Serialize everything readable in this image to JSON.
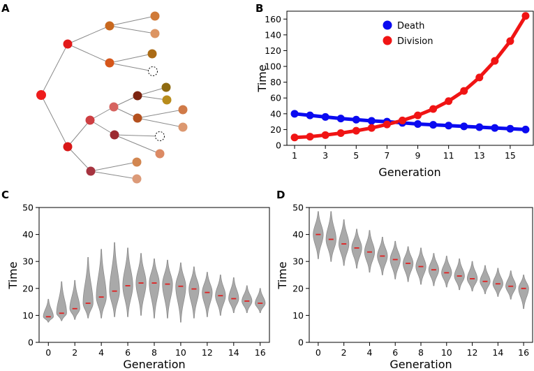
{
  "panels": {
    "a": "A",
    "b": "B",
    "c": "C",
    "d": "D"
  },
  "tree": {
    "nodes": [
      {
        "id": "root",
        "color": "#ee1c1c"
      },
      {
        "id": "u",
        "color": "#e21a1a"
      },
      {
        "id": "l",
        "color": "#d81818"
      },
      {
        "id": "uu",
        "color": "#c8681e"
      },
      {
        "id": "ul",
        "color": "#d6561a"
      },
      {
        "id": "uuu",
        "color": "#d07a38"
      },
      {
        "id": "uul",
        "color": "#dc9462"
      },
      {
        "id": "ulu",
        "color": "#ab6b15"
      },
      {
        "id": "ull",
        "dead": true
      },
      {
        "id": "lu",
        "color": "#ce3e42"
      },
      {
        "id": "ll",
        "color": "#a6333f"
      },
      {
        "id": "luu",
        "color": "#d66460"
      },
      {
        "id": "lul",
        "color": "#9c2a30"
      },
      {
        "id": "luuu",
        "color": "#7c2410"
      },
      {
        "id": "luul",
        "color": "#b4501e"
      },
      {
        "id": "luuuu",
        "color": "#8e6a10"
      },
      {
        "id": "luuul",
        "color": "#b88c1c"
      },
      {
        "id": "luulu",
        "color": "#d07a48"
      },
      {
        "id": "luull",
        "color": "#dc9870"
      },
      {
        "id": "lulu",
        "dead": true
      },
      {
        "id": "lull",
        "color": "#dc8a64"
      },
      {
        "id": "llu",
        "color": "#d28650"
      },
      {
        "id": "lll",
        "color": "#dc9a78"
      }
    ],
    "edges": [
      [
        "root",
        "u"
      ],
      [
        "root",
        "l"
      ],
      [
        "u",
        "uu"
      ],
      [
        "u",
        "ul"
      ],
      [
        "uu",
        "uuu"
      ],
      [
        "uu",
        "uul"
      ],
      [
        "ul",
        "ulu"
      ],
      [
        "ul",
        "ull"
      ],
      [
        "l",
        "lu"
      ],
      [
        "l",
        "ll"
      ],
      [
        "lu",
        "luu"
      ],
      [
        "lu",
        "lul"
      ],
      [
        "luu",
        "luuu"
      ],
      [
        "luu",
        "luul"
      ],
      [
        "luuu",
        "luuuu"
      ],
      [
        "luuu",
        "luuul"
      ],
      [
        "luul",
        "luulu"
      ],
      [
        "luul",
        "luull"
      ],
      [
        "lul",
        "lulu"
      ],
      [
        "lul",
        "lull"
      ],
      [
        "ll",
        "llu"
      ],
      [
        "ll",
        "lll"
      ]
    ]
  },
  "chart_data": [
    {
      "type": "line",
      "panel": "B",
      "xlabel": "Generation",
      "ylabel": "Time",
      "xlim": [
        0.5,
        16.5
      ],
      "ylim": [
        0,
        170
      ],
      "xticks": [
        1,
        3,
        5,
        7,
        9,
        11,
        13,
        15
      ],
      "yticks": [
        0,
        20,
        40,
        60,
        80,
        100,
        120,
        140,
        160
      ],
      "x": [
        1,
        2,
        3,
        4,
        5,
        6,
        7,
        8,
        9,
        10,
        11,
        12,
        13,
        14,
        15,
        16
      ],
      "legend_position": "top-center",
      "series": [
        {
          "name": "Death",
          "color": "#0a0af0",
          "values": [
            40,
            38,
            36,
            34,
            32.5,
            31,
            30,
            28.5,
            27,
            26,
            25,
            24,
            23,
            22,
            21,
            20
          ]
        },
        {
          "name": "Division",
          "color": "#f01414",
          "values": [
            10,
            11,
            13,
            15.5,
            18.5,
            22,
            26.5,
            31.5,
            38,
            46,
            56,
            69,
            86,
            107,
            132,
            164
          ]
        }
      ]
    },
    {
      "type": "violin",
      "panel": "C",
      "xlabel": "Generation",
      "ylabel": "Time",
      "xlim": [
        -0.7,
        16.7
      ],
      "ylim": [
        0,
        50
      ],
      "xticks": [
        0,
        2,
        4,
        6,
        8,
        10,
        12,
        14,
        16
      ],
      "yticks": [
        0,
        10,
        20,
        30,
        40,
        50
      ],
      "x": [
        0,
        1,
        2,
        3,
        4,
        5,
        6,
        7,
        8,
        9,
        10,
        11,
        12,
        13,
        14,
        15,
        16
      ],
      "medians": [
        9.5,
        10.8,
        12.5,
        14.5,
        16.8,
        19,
        21,
        22,
        22,
        21.6,
        20.8,
        19.8,
        18.5,
        17.3,
        16.2,
        15.3,
        14.5
      ],
      "mins": [
        7.5,
        8,
        8.5,
        9,
        9,
        9.5,
        9.5,
        10,
        9,
        9,
        7.5,
        9,
        9.5,
        10,
        11,
        11,
        11
      ],
      "maxs": [
        16,
        22.5,
        23,
        31.5,
        34.5,
        37,
        35,
        33,
        31,
        30.5,
        29.5,
        28,
        26,
        25,
        24,
        21,
        20
      ],
      "median_color": "#e02020",
      "violin_color": "#a9a9a9"
    },
    {
      "type": "violin",
      "panel": "D",
      "xlabel": "Generation",
      "ylabel": "Time",
      "xlim": [
        -0.7,
        16.7
      ],
      "ylim": [
        0,
        50
      ],
      "xticks": [
        0,
        2,
        4,
        6,
        8,
        10,
        12,
        14,
        16
      ],
      "yticks": [
        0,
        10,
        20,
        30,
        40,
        50
      ],
      "x": [
        0,
        1,
        2,
        3,
        4,
        5,
        6,
        7,
        8,
        9,
        10,
        11,
        12,
        13,
        14,
        15,
        16
      ],
      "medians": [
        40,
        38.2,
        36.5,
        35,
        33.5,
        32,
        30.7,
        29.3,
        28.1,
        26.9,
        25.8,
        24.6,
        23.6,
        22.6,
        21.7,
        20.8,
        20
      ],
      "mins": [
        31,
        30,
        28.5,
        27.5,
        26,
        25,
        23.5,
        22.5,
        21.5,
        21,
        20.5,
        19.5,
        19,
        18,
        17,
        16,
        12.5
      ],
      "maxs": [
        48.5,
        48.5,
        45.5,
        42,
        41.5,
        39,
        37.5,
        35.5,
        35,
        33,
        32,
        31,
        30,
        28.5,
        27.5,
        26.5,
        25
      ],
      "median_color": "#e02020",
      "violin_color": "#a9a9a9"
    }
  ]
}
